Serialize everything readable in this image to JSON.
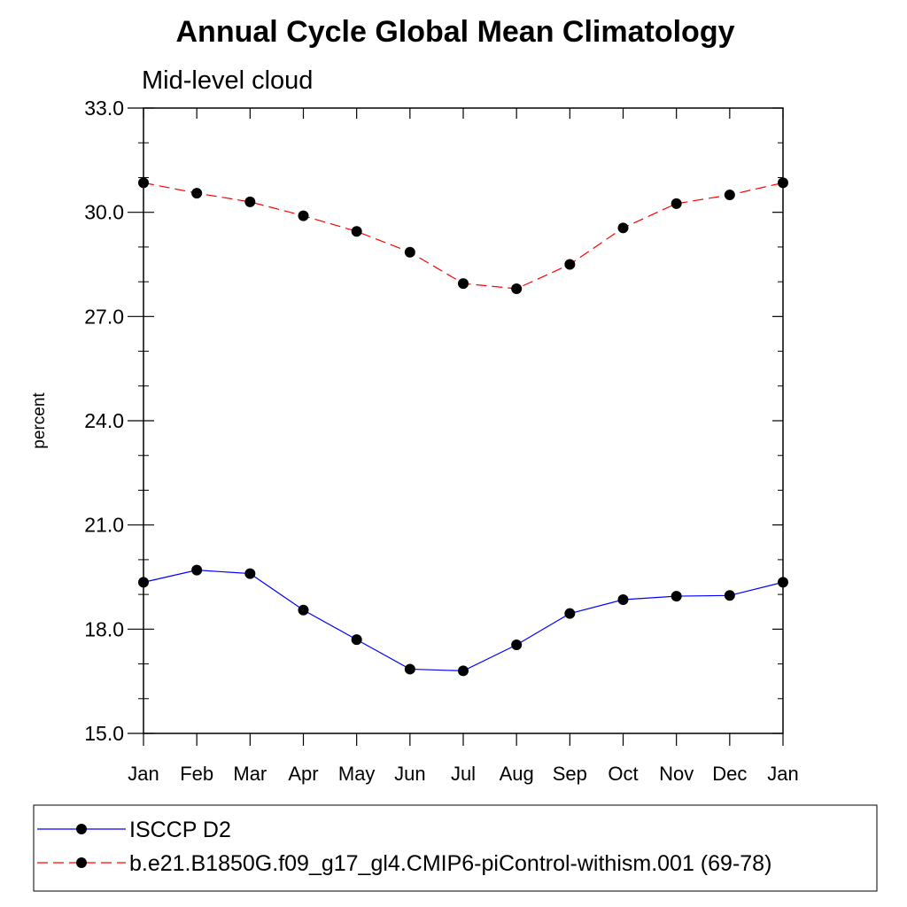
{
  "chart_data": {
    "type": "line",
    "title": "Annual Cycle Global Mean Climatology",
    "subtitle": "Mid-level cloud",
    "ylabel": "percent",
    "xlabel": "",
    "categories": [
      "Jan",
      "Feb",
      "Mar",
      "Apr",
      "May",
      "Jun",
      "Jul",
      "Aug",
      "Sep",
      "Oct",
      "Nov",
      "Dec",
      "Jan"
    ],
    "ylim": [
      15.0,
      33.0
    ],
    "yticks": [
      "15.0",
      "18.0",
      "21.0",
      "24.0",
      "27.0",
      "30.0",
      "33.0"
    ],
    "grid": false,
    "legend_position": "bottom",
    "series": [
      {
        "name": "ISCCP D2",
        "color": "#0000ff",
        "line_style": "solid",
        "marker": "filled-circle",
        "values": [
          19.35,
          19.7,
          19.6,
          18.55,
          17.7,
          16.85,
          16.8,
          17.55,
          18.45,
          18.85,
          18.95,
          18.97,
          19.35
        ]
      },
      {
        "name": "b.e21.B1850G.f09_g17_gl4.CMIP6-piControl-withism.001 (69-78)",
        "color": "#ff0000",
        "line_style": "dashed",
        "marker": "filled-circle",
        "values": [
          30.85,
          30.55,
          30.3,
          29.9,
          29.45,
          28.85,
          27.95,
          27.8,
          28.5,
          29.55,
          30.25,
          30.5,
          30.85
        ]
      }
    ]
  }
}
